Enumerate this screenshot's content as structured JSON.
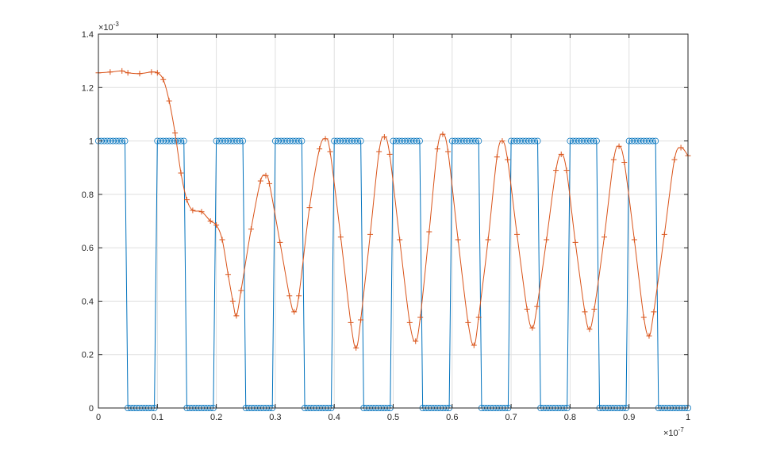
{
  "chart_data": {
    "type": "line",
    "title": "",
    "xlabel": "",
    "ylabel": "",
    "xlim": [
      0,
      1
    ],
    "ylim": [
      0,
      1.4
    ],
    "x_exponent": {
      "base": "×10",
      "power": "-7"
    },
    "y_exponent": {
      "base": "×10",
      "power": "-3"
    },
    "x_ticks": [
      0,
      0.1,
      0.2,
      0.3,
      0.4,
      0.5,
      0.6,
      0.7,
      0.8,
      0.9,
      1
    ],
    "x_tick_labels": [
      "0",
      "0.1",
      "0.2",
      "0.3",
      "0.4",
      "0.5",
      "0.6",
      "0.7",
      "0.8",
      "0.9",
      "1"
    ],
    "y_ticks": [
      0,
      0.2,
      0.4,
      0.6,
      0.8,
      1,
      1.2,
      1.4
    ],
    "y_tick_labels": [
      "0",
      "0.2",
      "0.4",
      "0.6",
      "0.8",
      "1",
      "1.2",
      "1.4"
    ],
    "grid": true,
    "box": true,
    "series": [
      {
        "color": "#0072BD",
        "marker": "circle",
        "x": [
          0,
          0.005,
          0.01,
          0.015,
          0.02,
          0.025,
          0.03,
          0.035,
          0.04,
          0.045,
          0.05,
          0.055,
          0.06,
          0.065,
          0.07,
          0.075,
          0.08,
          0.085,
          0.09,
          0.095,
          0.1,
          0.105,
          0.11,
          0.115,
          0.12,
          0.125,
          0.13,
          0.135,
          0.14,
          0.145,
          0.15,
          0.155,
          0.16,
          0.165,
          0.17,
          0.175,
          0.18,
          0.185,
          0.19,
          0.195,
          0.2,
          0.205,
          0.21,
          0.215,
          0.22,
          0.225,
          0.23,
          0.235,
          0.24,
          0.245,
          0.25,
          0.255,
          0.26,
          0.265,
          0.27,
          0.275,
          0.28,
          0.285,
          0.29,
          0.295,
          0.3,
          0.305,
          0.31,
          0.315,
          0.32,
          0.325,
          0.33,
          0.335,
          0.34,
          0.345,
          0.35,
          0.355,
          0.36,
          0.365,
          0.37,
          0.375,
          0.38,
          0.385,
          0.39,
          0.395,
          0.4,
          0.405,
          0.41,
          0.415,
          0.42,
          0.425,
          0.43,
          0.435,
          0.44,
          0.445,
          0.45,
          0.455,
          0.46,
          0.465,
          0.47,
          0.475,
          0.48,
          0.485,
          0.49,
          0.495,
          0.5,
          0.505,
          0.51,
          0.515,
          0.52,
          0.525,
          0.53,
          0.535,
          0.54,
          0.545,
          0.55,
          0.555,
          0.56,
          0.565,
          0.57,
          0.575,
          0.58,
          0.585,
          0.59,
          0.595,
          0.6,
          0.605,
          0.61,
          0.615,
          0.62,
          0.625,
          0.63,
          0.635,
          0.64,
          0.645,
          0.65,
          0.655,
          0.66,
          0.665,
          0.67,
          0.675,
          0.68,
          0.685,
          0.69,
          0.695,
          0.7,
          0.705,
          0.71,
          0.715,
          0.72,
          0.725,
          0.73,
          0.735,
          0.74,
          0.745,
          0.75,
          0.755,
          0.76,
          0.765,
          0.77,
          0.775,
          0.78,
          0.785,
          0.79,
          0.795,
          0.8,
          0.805,
          0.81,
          0.815,
          0.82,
          0.825,
          0.83,
          0.835,
          0.84,
          0.845,
          0.85,
          0.855,
          0.86,
          0.865,
          0.87,
          0.875,
          0.88,
          0.885,
          0.89,
          0.895,
          0.9,
          0.905,
          0.91,
          0.915,
          0.92,
          0.925,
          0.93,
          0.935,
          0.94,
          0.945,
          0.95,
          0.955,
          0.96,
          0.965,
          0.97,
          0.975,
          0.98,
          0.985,
          0.99,
          0.995,
          1
        ],
        "y": [
          1,
          1,
          1,
          1,
          1,
          1,
          1,
          1,
          1,
          1,
          0,
          0,
          0,
          0,
          0,
          0,
          0,
          0,
          0,
          0,
          1,
          1,
          1,
          1,
          1,
          1,
          1,
          1,
          1,
          1,
          0,
          0,
          0,
          0,
          0,
          0,
          0,
          0,
          0,
          0,
          1,
          1,
          1,
          1,
          1,
          1,
          1,
          1,
          1,
          1,
          0,
          0,
          0,
          0,
          0,
          0,
          0,
          0,
          0,
          0,
          1,
          1,
          1,
          1,
          1,
          1,
          1,
          1,
          1,
          1,
          0,
          0,
          0,
          0,
          0,
          0,
          0,
          0,
          0,
          0,
          1,
          1,
          1,
          1,
          1,
          1,
          1,
          1,
          1,
          1,
          0,
          0,
          0,
          0,
          0,
          0,
          0,
          0,
          0,
          0,
          1,
          1,
          1,
          1,
          1,
          1,
          1,
          1,
          1,
          1,
          0,
          0,
          0,
          0,
          0,
          0,
          0,
          0,
          0,
          0,
          1,
          1,
          1,
          1,
          1,
          1,
          1,
          1,
          1,
          1,
          0,
          0,
          0,
          0,
          0,
          0,
          0,
          0,
          0,
          0,
          1,
          1,
          1,
          1,
          1,
          1,
          1,
          1,
          1,
          1,
          0,
          0,
          0,
          0,
          0,
          0,
          0,
          0,
          0,
          0,
          1,
          1,
          1,
          1,
          1,
          1,
          1,
          1,
          1,
          1,
          0,
          0,
          0,
          0,
          0,
          0,
          0,
          0,
          0,
          0,
          1,
          1,
          1,
          1,
          1,
          1,
          1,
          1,
          1,
          1,
          0,
          0,
          0,
          0,
          0,
          0,
          0,
          0,
          0,
          0,
          0
        ]
      },
      {
        "color": "#D95319",
        "marker": "plus",
        "x": [
          0,
          0.02,
          0.04,
          0.05,
          0.07,
          0.09,
          0.1,
          0.11,
          0.12,
          0.13,
          0.14,
          0.15,
          0.16,
          0.175,
          0.19,
          0.2,
          0.21,
          0.22,
          0.228,
          0.234,
          0.242,
          0.259,
          0.275,
          0.284,
          0.29,
          0.308,
          0.324,
          0.332,
          0.34,
          0.358,
          0.375,
          0.385,
          0.393,
          0.411,
          0.428,
          0.437,
          0.445,
          0.461,
          0.476,
          0.485,
          0.494,
          0.511,
          0.528,
          0.538,
          0.546,
          0.561,
          0.575,
          0.584,
          0.593,
          0.61,
          0.627,
          0.637,
          0.645,
          0.661,
          0.676,
          0.685,
          0.694,
          0.71,
          0.727,
          0.736,
          0.744,
          0.76,
          0.776,
          0.785,
          0.794,
          0.809,
          0.825,
          0.833,
          0.841,
          0.858,
          0.874,
          0.883,
          0.892,
          0.909,
          0.925,
          0.934,
          0.942,
          0.96,
          0.977,
          0.988,
          1.0
        ],
        "y": [
          1.255,
          1.258,
          1.262,
          1.255,
          1.252,
          1.258,
          1.255,
          1.23,
          1.15,
          1.03,
          0.88,
          0.78,
          0.74,
          0.735,
          0.7,
          0.685,
          0.63,
          0.5,
          0.4,
          0.345,
          0.44,
          0.67,
          0.85,
          0.87,
          0.84,
          0.62,
          0.42,
          0.36,
          0.42,
          0.75,
          0.97,
          1.008,
          0.96,
          0.64,
          0.32,
          0.225,
          0.33,
          0.65,
          0.96,
          1.015,
          0.95,
          0.63,
          0.32,
          0.25,
          0.34,
          0.66,
          0.97,
          1.025,
          0.96,
          0.63,
          0.32,
          0.235,
          0.34,
          0.63,
          0.94,
          1.0,
          0.93,
          0.65,
          0.37,
          0.3,
          0.38,
          0.63,
          0.89,
          0.95,
          0.89,
          0.62,
          0.36,
          0.295,
          0.37,
          0.64,
          0.93,
          0.98,
          0.92,
          0.63,
          0.34,
          0.27,
          0.36,
          0.65,
          0.93,
          0.975,
          0.945
        ]
      }
    ]
  }
}
